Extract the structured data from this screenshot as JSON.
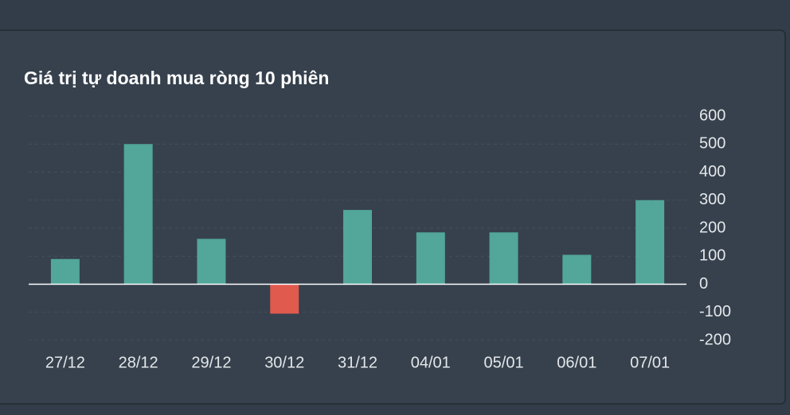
{
  "chart_data": {
    "type": "bar",
    "title": "Giá trị tự doanh mua ròng 10 phiên",
    "categories": [
      "27/12",
      "28/12",
      "29/12",
      "30/12",
      "31/12",
      "04/01",
      "05/01",
      "06/01",
      "07/01"
    ],
    "values": [
      90,
      500,
      162,
      -105,
      265,
      185,
      185,
      105,
      300
    ],
    "color": "#52a69a",
    "negative_color": "#e05a4e",
    "ylim": [
      -200,
      600
    ],
    "yticks": [
      -200,
      -100,
      0,
      100,
      200,
      300,
      400,
      500,
      600
    ],
    "grid": true
  }
}
